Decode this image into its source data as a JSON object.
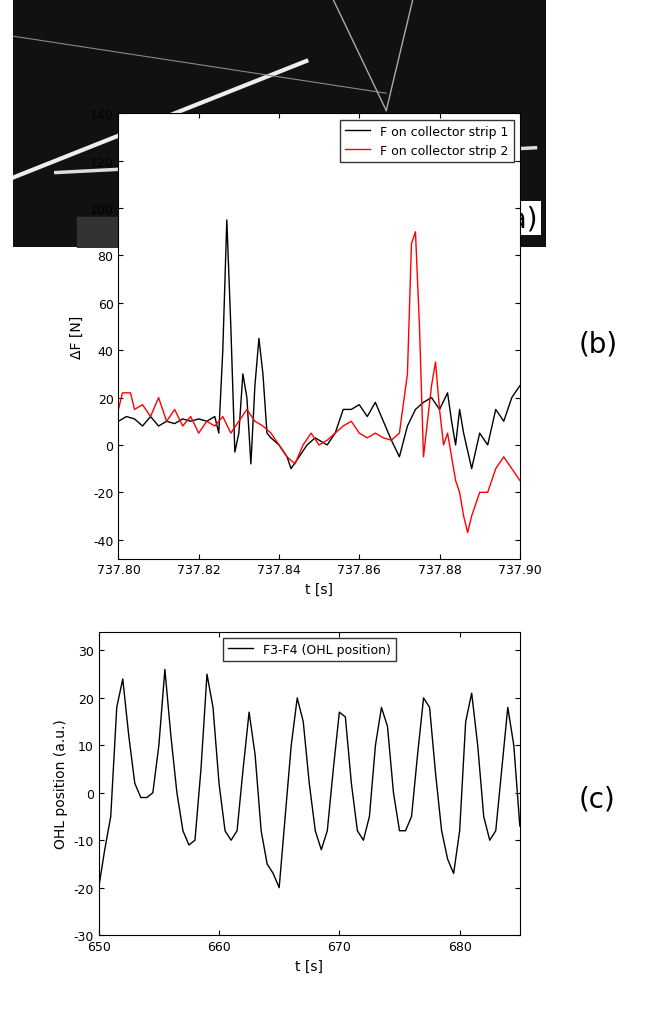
{
  "chart_data": [
    {
      "type": "image",
      "panel_label": "(a)"
    },
    {
      "type": "line",
      "panel_label": "(b)",
      "x_label": "t [s]",
      "y_label": "ΔF [N]",
      "xlim": [
        737.8,
        737.9
      ],
      "xticks": [
        {
          "value": 737.8,
          "label": "737.80"
        },
        {
          "value": 737.82,
          "label": "737.82"
        },
        {
          "value": 737.84,
          "label": "737.84"
        },
        {
          "value": 737.86,
          "label": "737.86"
        },
        {
          "value": 737.88,
          "label": "737.88"
        },
        {
          "value": 737.9,
          "label": "737.90"
        }
      ],
      "ylim": [
        -48,
        140
      ],
      "yticks": [
        -40,
        -20,
        0,
        20,
        40,
        60,
        80,
        100,
        120,
        140
      ],
      "legend": "upper right",
      "series": [
        {
          "name": "F on collector strip 1",
          "color": "#000000",
          "x": [
            737.8,
            737.802,
            737.804,
            737.806,
            737.808,
            737.81,
            737.812,
            737.814,
            737.816,
            737.818,
            737.82,
            737.822,
            737.824,
            737.825,
            737.826,
            737.827,
            737.828,
            737.829,
            737.83,
            737.831,
            737.832,
            737.833,
            737.834,
            737.835,
            737.836,
            737.837,
            737.838,
            737.84,
            737.842,
            737.843,
            737.845,
            737.847,
            737.849,
            737.85,
            737.852,
            737.854,
            737.856,
            737.858,
            737.86,
            737.862,
            737.864,
            737.866,
            737.868,
            737.87,
            737.872,
            737.874,
            737.876,
            737.878,
            737.88,
            737.882,
            737.883,
            737.884,
            737.885,
            737.886,
            737.888,
            737.89,
            737.892,
            737.894,
            737.896,
            737.898,
            737.9
          ],
          "values": [
            10,
            12,
            11,
            8,
            12,
            8,
            10,
            9,
            11,
            10,
            11,
            10,
            12,
            5,
            40,
            95,
            50,
            -3,
            5,
            30,
            20,
            -8,
            25,
            45,
            30,
            5,
            3,
            0,
            -5,
            -10,
            -5,
            0,
            3,
            2,
            0,
            5,
            15,
            15,
            17,
            12,
            18,
            10,
            2,
            -5,
            8,
            15,
            18,
            20,
            15,
            22,
            10,
            0,
            15,
            5,
            -10,
            5,
            0,
            15,
            10,
            20,
            25
          ]
        },
        {
          "name": "F on collector strip 2",
          "color": "#ff0000",
          "x": [
            737.8,
            737.801,
            737.803,
            737.804,
            737.806,
            737.808,
            737.81,
            737.812,
            737.814,
            737.816,
            737.818,
            737.82,
            737.822,
            737.824,
            737.826,
            737.828,
            737.83,
            737.832,
            737.834,
            737.836,
            737.838,
            737.84,
            737.842,
            737.844,
            737.846,
            737.848,
            737.85,
            737.852,
            737.854,
            737.856,
            737.858,
            737.86,
            737.862,
            737.864,
            737.866,
            737.868,
            737.87,
            737.872,
            737.873,
            737.874,
            737.875,
            737.876,
            737.877,
            737.878,
            737.879,
            737.88,
            737.881,
            737.882,
            737.883,
            737.884,
            737.885,
            737.886,
            737.887,
            737.888,
            737.889,
            737.89,
            737.892,
            737.894,
            737.896,
            737.898,
            737.9
          ],
          "values": [
            15,
            22,
            22,
            15,
            17,
            12,
            20,
            10,
            15,
            8,
            12,
            5,
            10,
            8,
            12,
            5,
            10,
            15,
            10,
            8,
            5,
            0,
            -5,
            -8,
            0,
            5,
            0,
            2,
            5,
            8,
            10,
            5,
            3,
            5,
            3,
            2,
            5,
            30,
            85,
            90,
            50,
            -5,
            10,
            25,
            35,
            15,
            0,
            5,
            -5,
            -15,
            -20,
            -30,
            -37,
            -30,
            -25,
            -20,
            -20,
            -10,
            -5,
            -10,
            -15
          ]
        }
      ]
    },
    {
      "type": "line",
      "panel_label": "(c)",
      "x_label": "t [s]",
      "y_label": "OHL position (a.u.)",
      "xlim": [
        650,
        685
      ],
      "xticks": [
        650,
        660,
        670,
        680
      ],
      "ylim": [
        -30,
        34
      ],
      "yticks": [
        -30,
        -20,
        -10,
        0,
        10,
        20,
        30
      ],
      "legend": "upper center",
      "series": [
        {
          "name": "F3-F4 (OHL position)",
          "color": "#000000",
          "x": [
            650,
            650.5,
            651,
            651.5,
            652,
            652.5,
            653,
            653.5,
            654,
            654.5,
            655,
            655.5,
            656,
            656.5,
            657,
            657.5,
            658,
            658.5,
            659,
            659.5,
            660,
            660.5,
            661,
            661.5,
            662,
            662.5,
            663,
            663.5,
            664,
            664.5,
            665,
            665.5,
            666,
            666.5,
            667,
            667.5,
            668,
            668.5,
            669,
            669.5,
            670,
            670.5,
            671,
            671.5,
            672,
            672.5,
            673,
            673.5,
            674,
            674.5,
            675,
            675.5,
            676,
            676.5,
            677,
            677.5,
            678,
            678.5,
            679,
            679.5,
            680,
            680.5,
            681,
            681.5,
            682,
            682.5,
            683,
            683.5,
            684,
            684.5,
            685
          ],
          "values": [
            -20,
            -12,
            -5,
            18,
            24,
            12,
            2,
            -1,
            -1,
            0,
            10,
            26,
            12,
            0,
            -8,
            -11,
            -10,
            5,
            25,
            18,
            2,
            -8,
            -10,
            -8,
            5,
            17,
            8,
            -8,
            -15,
            -17,
            -20,
            -5,
            10,
            20,
            15,
            2,
            -8,
            -12,
            -8,
            5,
            17,
            16,
            2,
            -8,
            -10,
            -5,
            10,
            18,
            14,
            0,
            -8,
            -8,
            -5,
            8,
            20,
            18,
            4,
            -8,
            -14,
            -17,
            -8,
            15,
            21,
            10,
            -5,
            -10,
            -8,
            5,
            18,
            10,
            -7
          ]
        }
      ]
    }
  ]
}
